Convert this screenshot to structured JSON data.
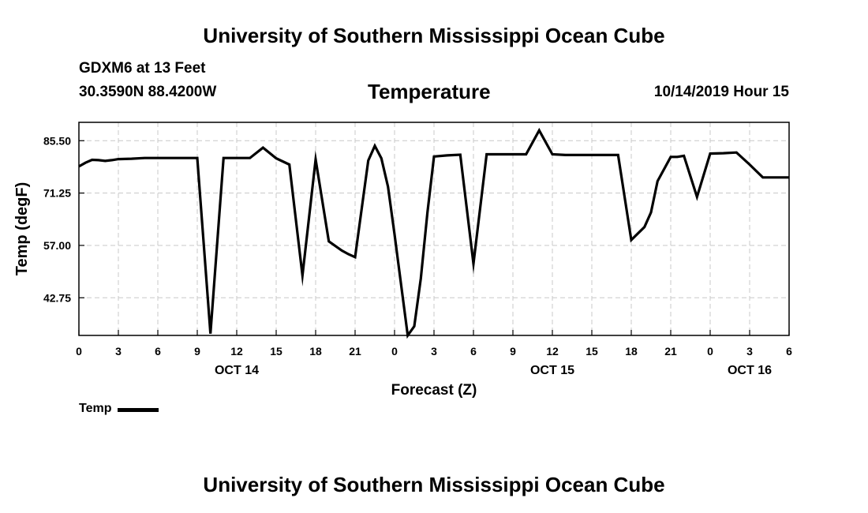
{
  "header": {
    "title_top": "University of Southern Mississippi Ocean Cube",
    "station": "GDXM6 at 13 Feet",
    "coords": "30.3590N 88.4200W",
    "datetime": "10/14/2019 Hour 15",
    "title_bottom": "University of Southern Mississippi Ocean Cube"
  },
  "chart_data": {
    "type": "line",
    "title": "Temperature",
    "xlabel": "Forecast (Z)",
    "ylabel": "Temp (degF)",
    "ylim": [
      32.5,
      90.5
    ],
    "xlim": [
      0,
      54
    ],
    "yticks": [
      42.75,
      57.0,
      71.25,
      85.5
    ],
    "ytick_labels": [
      "42.75",
      "57.00",
      "71.25",
      "85.50"
    ],
    "xticks": [
      0,
      3,
      6,
      9,
      12,
      15,
      18,
      21,
      24,
      27,
      30,
      33,
      36,
      39,
      42,
      45,
      48,
      51,
      54
    ],
    "xtick_labels": [
      "0",
      "3",
      "6",
      "9",
      "12",
      "15",
      "18",
      "21",
      "0",
      "3",
      "6",
      "9",
      "12",
      "15",
      "18",
      "21",
      "0",
      "3",
      "6"
    ],
    "date_labels": [
      {
        "x": 12,
        "label": "OCT 14"
      },
      {
        "x": 36,
        "label": "OCT 15"
      },
      {
        "x": 51,
        "label": "OCT 16"
      }
    ],
    "grid": true,
    "series": [
      {
        "name": "Temp",
        "color": "#000000",
        "x": [
          0,
          0.5,
          1,
          1.5,
          2,
          2.5,
          3,
          4,
          5,
          6,
          7,
          8,
          9,
          10,
          11,
          12,
          13,
          14,
          15,
          16,
          17,
          18,
          19,
          20,
          20.5,
          21,
          22,
          22.5,
          23,
          23.5,
          24,
          25,
          25.5,
          26,
          26.5,
          27,
          28,
          29,
          30,
          31,
          32,
          33,
          34,
          35,
          36,
          37,
          38,
          39,
          40,
          41,
          42,
          43,
          43.5,
          44,
          45,
          45.5,
          46,
          47,
          48,
          49,
          50,
          51,
          52,
          53,
          53.5,
          54
        ],
        "values": [
          78.5,
          79.5,
          80.3,
          80.2,
          80,
          80.2,
          80.5,
          80.6,
          80.8,
          80.8,
          80.8,
          80.8,
          80.8,
          33,
          80.8,
          80.8,
          80.8,
          83.6,
          80.7,
          79,
          48.8,
          80.4,
          58.1,
          55.6,
          54.6,
          53.8,
          80.1,
          84.1,
          80.7,
          73,
          60,
          32.5,
          35,
          48,
          66,
          81.2,
          81.5,
          81.7,
          52,
          81.8,
          81.8,
          81.8,
          81.8,
          88.3,
          81.8,
          81.6,
          81.6,
          81.6,
          81.6,
          81.6,
          58.5,
          62,
          66,
          74.5,
          81.1,
          81.1,
          81.4,
          70.2,
          82,
          82.1,
          82.3,
          79,
          75.5,
          75.5,
          75.5,
          75.5
        ]
      }
    ]
  }
}
